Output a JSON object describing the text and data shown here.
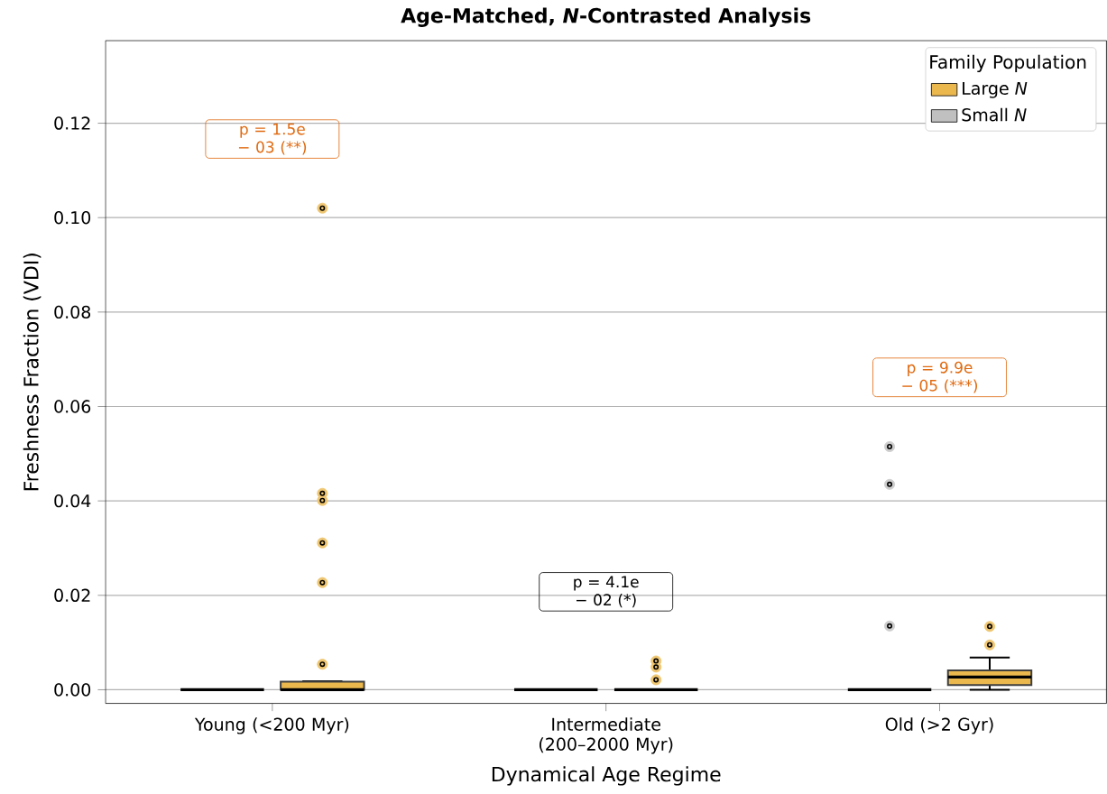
{
  "chart_data": {
    "type": "box",
    "title": "Age-Matched, *N*-Contrasted Analysis",
    "xlabel": "Dynamical Age Regime",
    "ylabel": "Freshness Fraction (VDI)",
    "legend_title": "Family Population",
    "legend": "top right",
    "grid": "y",
    "categories": [
      "Young (<200 Myr)",
      "Intermediate (200–2000 Myr)",
      "Old (>2 Gyr)"
    ],
    "ylim": [
      -0.0029,
      0.1375
    ],
    "yticks": [
      {
        "value": 0,
        "label": "0.00"
      },
      {
        "value": 0.02,
        "label": "0.02"
      },
      {
        "value": 0.04,
        "label": "0.04"
      },
      {
        "value": 0.06,
        "label": "0.06"
      },
      {
        "value": 0.08,
        "label": "0.08"
      },
      {
        "value": 0.1,
        "label": "0.10"
      },
      {
        "value": 0.12,
        "label": "0.12"
      }
    ],
    "series": [
      {
        "name": "Small *N*",
        "type": "box",
        "color": "#c0c0c0",
        "boxes": [
          {
            "low": 0,
            "q1": 0,
            "median": 0,
            "q3": 0,
            "high": 0
          },
          {
            "low": 0,
            "q1": 0,
            "median": 0,
            "q3": 0,
            "high": 0
          },
          {
            "low": 0,
            "q1": 0,
            "median": 0,
            "q3": 0,
            "high": 0,
            "outliers": [
              0.0515,
              0.0435,
              0.0135
            ]
          }
        ]
      },
      {
        "name": "Large *N*",
        "type": "box",
        "color": "#ebb84e",
        "boxes": [
          {
            "low": 0,
            "q1": 0,
            "median": 0,
            "q3": 0.0017,
            "high": 0.0018,
            "outliers": [
              0.102,
              0.0416,
              0.0401,
              0.0311,
              0.0227,
              0.0054
            ]
          },
          {
            "low": 0,
            "q1": 0,
            "median": 0,
            "q3": 0,
            "high": 0,
            "outliers": [
              0.0061,
              0.0048,
              0.0021
            ]
          },
          {
            "low": 0,
            "q1": 0.001,
            "median": 0.0027,
            "q3": 0.0041,
            "high": 0.0068,
            "outliers": [
              0.0134,
              0.0095
            ]
          }
        ]
      }
    ],
    "annotations": [
      "p = 1.5e − 03 (**)",
      "p = 4.1e − 02 (*)",
      "p = 9.9e − 05 (***)"
    ]
  }
}
